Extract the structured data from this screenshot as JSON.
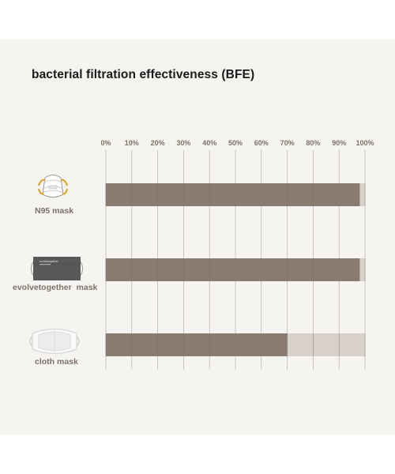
{
  "chart_data": {
    "type": "bar",
    "orientation": "horizontal",
    "stacked": true,
    "title": "bacterial filtration effectiveness (BFE)",
    "xlabel": "",
    "ylabel": "",
    "xlim": [
      0,
      100
    ],
    "x_ticks": [
      "0%",
      "10%",
      "20%",
      "30%",
      "40%",
      "50%",
      "60%",
      "70%",
      "80%",
      "90%",
      "100%"
    ],
    "grid": true,
    "categories": [
      "N95 mask",
      "evolvetogether  mask",
      "cloth mask"
    ],
    "values": [
      98,
      98,
      70
    ],
    "colors": {
      "filled": "#8a7b70",
      "remainder": "#d8d1c9",
      "grid": "#b9b0a8"
    }
  },
  "icons": [
    "n95-mask-icon",
    "evolvetogether-mask-icon",
    "cloth-mask-icon"
  ],
  "mask_print": "evolvetogether"
}
